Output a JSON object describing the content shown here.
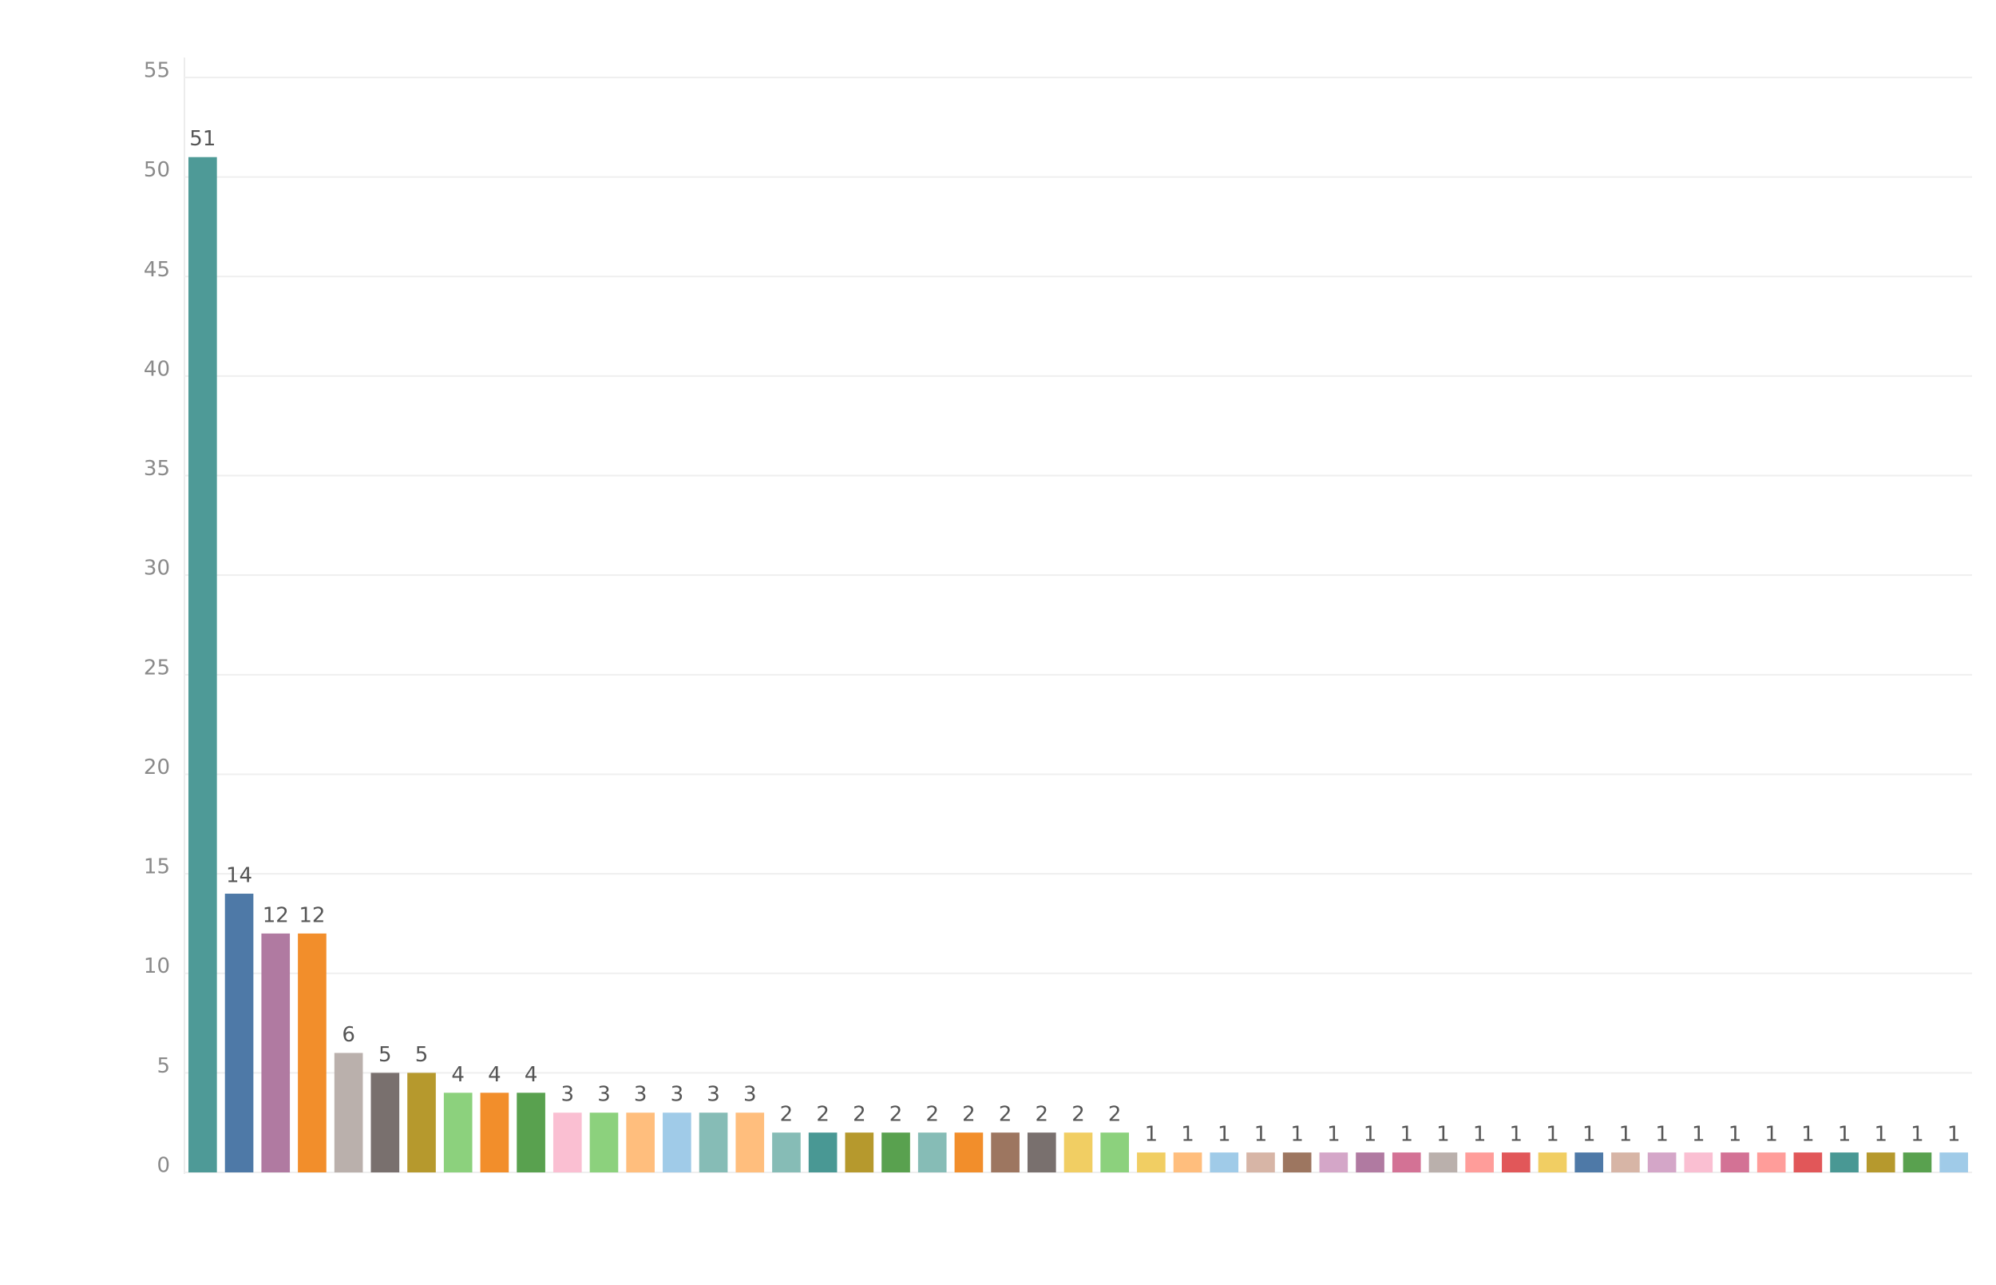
{
  "chart_data": {
    "type": "bar",
    "values": [
      51,
      14,
      12,
      12,
      6,
      5,
      5,
      4,
      4,
      4,
      3,
      3,
      3,
      3,
      3,
      3,
      2,
      2,
      2,
      2,
      2,
      2,
      2,
      2,
      2,
      2,
      1,
      1,
      1,
      1,
      1,
      1,
      1,
      1,
      1,
      1,
      1,
      1,
      1,
      1,
      1,
      1,
      1,
      1,
      1,
      1,
      1,
      1,
      1
    ],
    "colors": [
      "#4e9a97",
      "#4e79a7",
      "#b07aa1",
      "#f28e2b",
      "#bab0ac",
      "#79706e",
      "#b6992d",
      "#8cd17d",
      "#f28e2b",
      "#59a14f",
      "#fabfd2",
      "#8cd17d",
      "#ffbe7d",
      "#a0cbe8",
      "#86bcb6",
      "#ffbe7d",
      "#86bcb6",
      "#499894",
      "#b6992d",
      "#59a14f",
      "#86bcb6",
      "#f28e2b",
      "#9d7660",
      "#79706e",
      "#f1ce63",
      "#8cd17d",
      "#f1ce63",
      "#ffbe7d",
      "#a0cbe8",
      "#d7b5a6",
      "#9d7660",
      "#d4a6c8",
      "#b07aa1",
      "#d37295",
      "#bab0ac",
      "#ff9d9a",
      "#e15759",
      "#f1ce63",
      "#4e79a7",
      "#d7b5a6",
      "#d4a6c8",
      "#fabfd2",
      "#d37295",
      "#ff9d9a",
      "#e15759",
      "#499894",
      "#b6992d",
      "#59a14f",
      "#a0cbe8"
    ],
    "ylim": [
      0,
      55
    ],
    "yticks": [
      0,
      5,
      10,
      15,
      20,
      25,
      30,
      35,
      40,
      45,
      50,
      55
    ],
    "grid": true
  }
}
